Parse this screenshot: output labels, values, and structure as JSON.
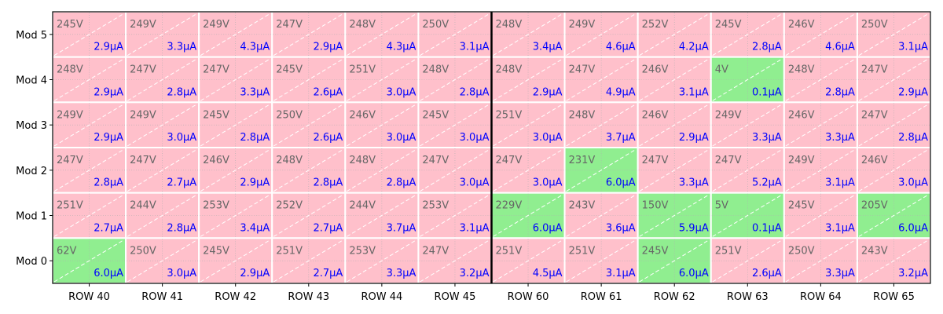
{
  "chart_data": {
    "type": "heatmap",
    "xlabels": [
      "ROW 40",
      "ROW 41",
      "ROW 42",
      "ROW 43",
      "ROW 44",
      "ROW 45",
      "ROW 60",
      "ROW 61",
      "ROW 62",
      "ROW 63",
      "ROW 64",
      "ROW 65"
    ],
    "ylabels": [
      "Mod 5",
      "Mod 4",
      "Mod 3",
      "Mod 2",
      "Mod 1",
      "Mod 0"
    ],
    "voltage_unit": "V",
    "current_unit": "μA",
    "group_separator_after_column": 6,
    "colors": {
      "fail": "#ffc0cb",
      "pass": "#90ee90",
      "voltage_text": "#666666",
      "current_text": "#0000ff",
      "cell_border": "#ffffff",
      "separator": "#000000"
    },
    "cells": [
      [
        {
          "v": 245,
          "i": 2.9,
          "s": "fail"
        },
        {
          "v": 249,
          "i": 3.3,
          "s": "fail"
        },
        {
          "v": 249,
          "i": 4.3,
          "s": "fail"
        },
        {
          "v": 247,
          "i": 2.9,
          "s": "fail"
        },
        {
          "v": 248,
          "i": 4.3,
          "s": "fail"
        },
        {
          "v": 250,
          "i": 3.1,
          "s": "fail"
        },
        {
          "v": 248,
          "i": 3.4,
          "s": "fail"
        },
        {
          "v": 249,
          "i": 4.6,
          "s": "fail"
        },
        {
          "v": 252,
          "i": 4.2,
          "s": "fail"
        },
        {
          "v": 245,
          "i": 2.8,
          "s": "fail"
        },
        {
          "v": 246,
          "i": 4.6,
          "s": "fail"
        },
        {
          "v": 250,
          "i": 3.1,
          "s": "fail"
        }
      ],
      [
        {
          "v": 248,
          "i": 2.9,
          "s": "fail"
        },
        {
          "v": 247,
          "i": 2.8,
          "s": "fail"
        },
        {
          "v": 247,
          "i": 3.3,
          "s": "fail"
        },
        {
          "v": 245,
          "i": 2.6,
          "s": "fail"
        },
        {
          "v": 251,
          "i": 3.0,
          "s": "fail"
        },
        {
          "v": 248,
          "i": 2.8,
          "s": "fail"
        },
        {
          "v": 248,
          "i": 2.9,
          "s": "fail"
        },
        {
          "v": 247,
          "i": 4.9,
          "s": "fail"
        },
        {
          "v": 246,
          "i": 3.1,
          "s": "fail"
        },
        {
          "v": 4,
          "i": 0.1,
          "s": "pass"
        },
        {
          "v": 248,
          "i": 2.8,
          "s": "fail"
        },
        {
          "v": 247,
          "i": 2.9,
          "s": "fail"
        }
      ],
      [
        {
          "v": 249,
          "i": 2.9,
          "s": "fail"
        },
        {
          "v": 249,
          "i": 3.0,
          "s": "fail"
        },
        {
          "v": 245,
          "i": 2.8,
          "s": "fail"
        },
        {
          "v": 250,
          "i": 2.6,
          "s": "fail"
        },
        {
          "v": 246,
          "i": 3.0,
          "s": "fail"
        },
        {
          "v": 245,
          "i": 3.0,
          "s": "fail"
        },
        {
          "v": 251,
          "i": 3.0,
          "s": "fail"
        },
        {
          "v": 248,
          "i": 3.7,
          "s": "fail"
        },
        {
          "v": 246,
          "i": 2.9,
          "s": "fail"
        },
        {
          "v": 249,
          "i": 3.3,
          "s": "fail"
        },
        {
          "v": 246,
          "i": 3.3,
          "s": "fail"
        },
        {
          "v": 247,
          "i": 2.8,
          "s": "fail"
        }
      ],
      [
        {
          "v": 247,
          "i": 2.8,
          "s": "fail"
        },
        {
          "v": 247,
          "i": 2.7,
          "s": "fail"
        },
        {
          "v": 246,
          "i": 2.9,
          "s": "fail"
        },
        {
          "v": 248,
          "i": 2.8,
          "s": "fail"
        },
        {
          "v": 248,
          "i": 2.8,
          "s": "fail"
        },
        {
          "v": 247,
          "i": 3.0,
          "s": "fail"
        },
        {
          "v": 247,
          "i": 3.0,
          "s": "fail"
        },
        {
          "v": 231,
          "i": 6.0,
          "s": "pass"
        },
        {
          "v": 247,
          "i": 3.3,
          "s": "fail"
        },
        {
          "v": 247,
          "i": 5.2,
          "s": "fail"
        },
        {
          "v": 249,
          "i": 3.1,
          "s": "fail"
        },
        {
          "v": 246,
          "i": 3.0,
          "s": "fail"
        }
      ],
      [
        {
          "v": 251,
          "i": 2.7,
          "s": "fail"
        },
        {
          "v": 244,
          "i": 2.8,
          "s": "fail"
        },
        {
          "v": 253,
          "i": 3.4,
          "s": "fail"
        },
        {
          "v": 252,
          "i": 2.7,
          "s": "fail"
        },
        {
          "v": 244,
          "i": 3.7,
          "s": "fail"
        },
        {
          "v": 253,
          "i": 3.1,
          "s": "fail"
        },
        {
          "v": 229,
          "i": 6.0,
          "s": "pass"
        },
        {
          "v": 243,
          "i": 3.6,
          "s": "fail"
        },
        {
          "v": 150,
          "i": 5.9,
          "s": "pass"
        },
        {
          "v": 5,
          "i": 0.1,
          "s": "pass"
        },
        {
          "v": 245,
          "i": 3.1,
          "s": "fail"
        },
        {
          "v": 205,
          "i": 6.0,
          "s": "pass"
        }
      ],
      [
        {
          "v": 62,
          "i": 6.0,
          "s": "pass"
        },
        {
          "v": 250,
          "i": 3.0,
          "s": "fail"
        },
        {
          "v": 245,
          "i": 2.9,
          "s": "fail"
        },
        {
          "v": 251,
          "i": 2.7,
          "s": "fail"
        },
        {
          "v": 253,
          "i": 3.3,
          "s": "fail"
        },
        {
          "v": 247,
          "i": 3.2,
          "s": "fail"
        },
        {
          "v": 251,
          "i": 4.5,
          "s": "fail"
        },
        {
          "v": 251,
          "i": 3.1,
          "s": "fail"
        },
        {
          "v": 245,
          "i": 6.0,
          "s": "pass"
        },
        {
          "v": 251,
          "i": 2.6,
          "s": "fail"
        },
        {
          "v": 250,
          "i": 3.3,
          "s": "fail"
        },
        {
          "v": 243,
          "i": 3.2,
          "s": "fail"
        }
      ]
    ]
  }
}
